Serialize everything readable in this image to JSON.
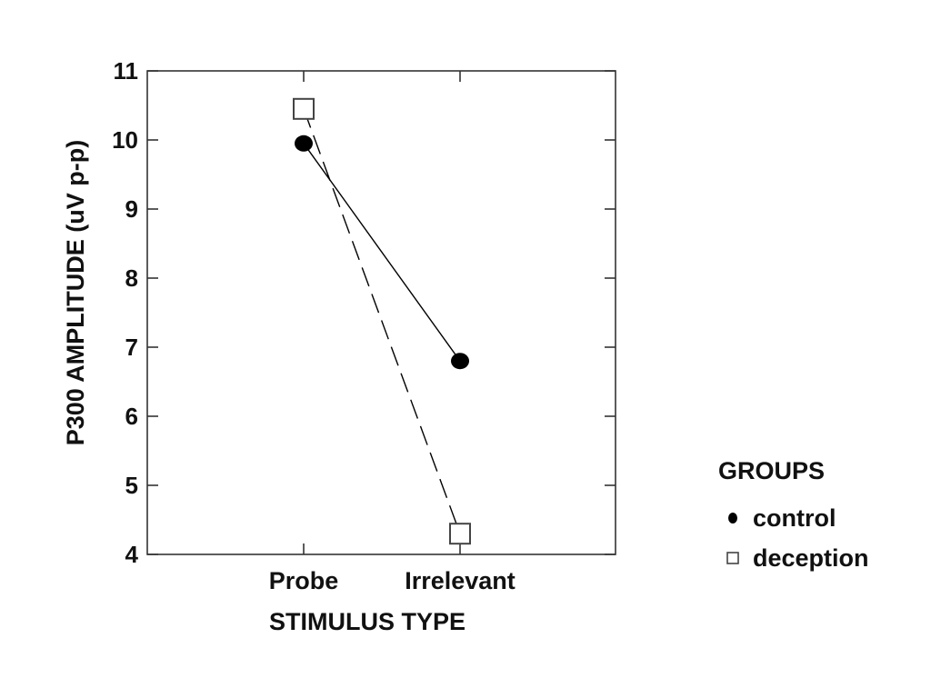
{
  "chart_data": {
    "type": "line",
    "title": "",
    "xlabel": "STIMULUS TYPE",
    "ylabel": "P300 AMPLITUDE  (uV p-p)",
    "categories": [
      "Probe",
      "Irrelevant"
    ],
    "ylim": [
      4,
      11
    ],
    "yticks": [
      4,
      5,
      6,
      7,
      8,
      9,
      10,
      11
    ],
    "grid": false,
    "legend": {
      "title": "GROUPS",
      "placement": "right"
    },
    "series": [
      {
        "name": "control",
        "values": [
          9.95,
          6.8
        ],
        "marker": "filled-circle",
        "line_style": "solid",
        "color": "#000000"
      },
      {
        "name": "deception",
        "values": [
          10.45,
          4.3
        ],
        "marker": "open-square",
        "line_style": "dashed",
        "color": "#000000"
      }
    ]
  }
}
